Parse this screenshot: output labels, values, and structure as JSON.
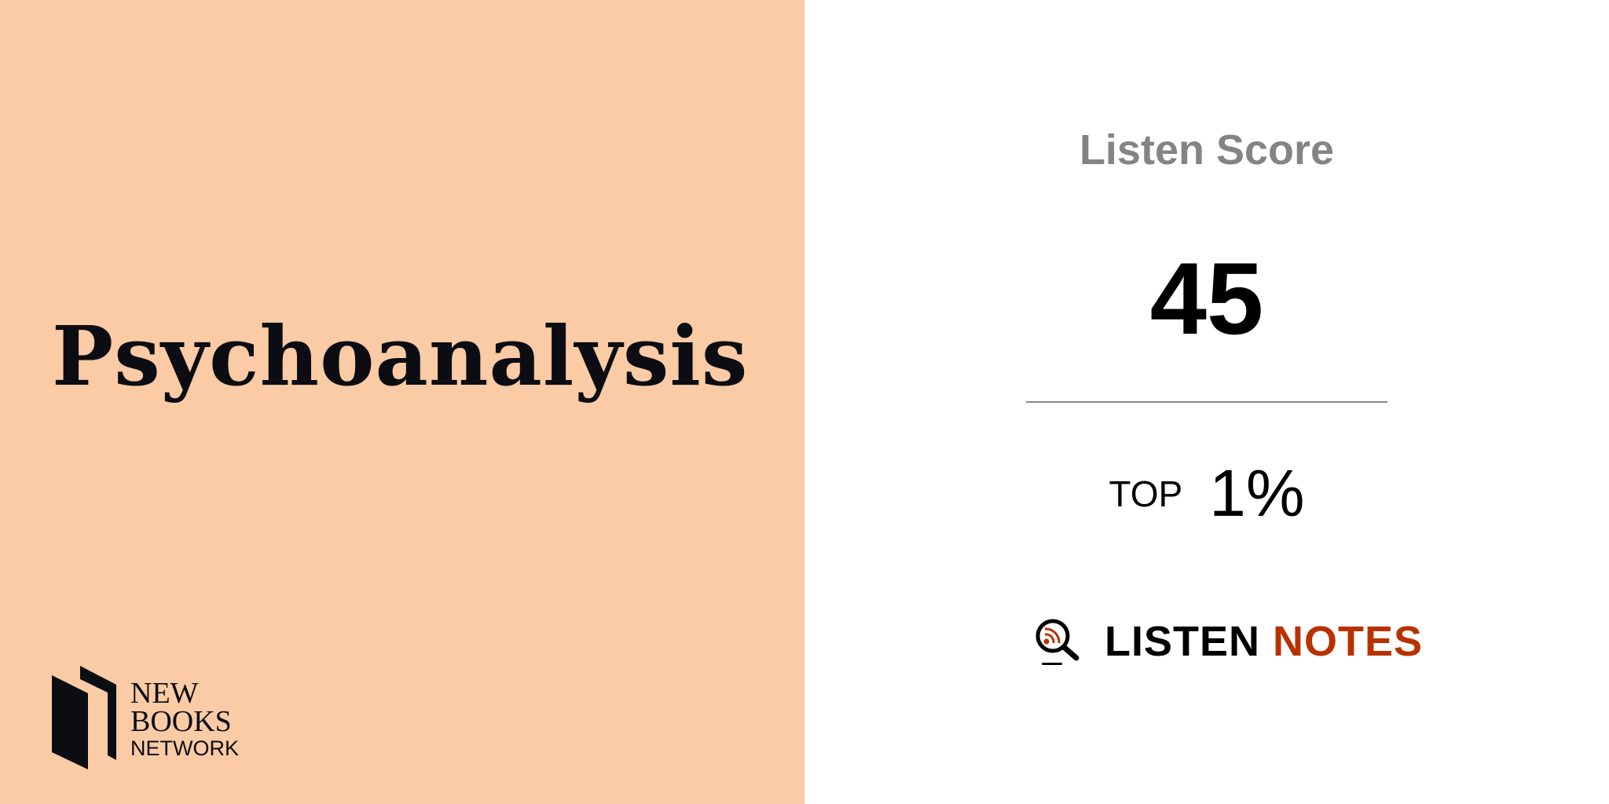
{
  "podcast": {
    "title": "Psychoanalysis",
    "background": "#fbcba5"
  },
  "publisher_logo": {
    "line1": "NEW",
    "line2": "BOOKS",
    "line3": "NETWORK"
  },
  "listen_score": {
    "label": "Listen Score",
    "value": "45"
  },
  "ranking": {
    "prefix": "TOP",
    "value": "1%"
  },
  "brand": {
    "word1": "LISTEN",
    "word2": "NOTES",
    "accent": "#b83200"
  }
}
